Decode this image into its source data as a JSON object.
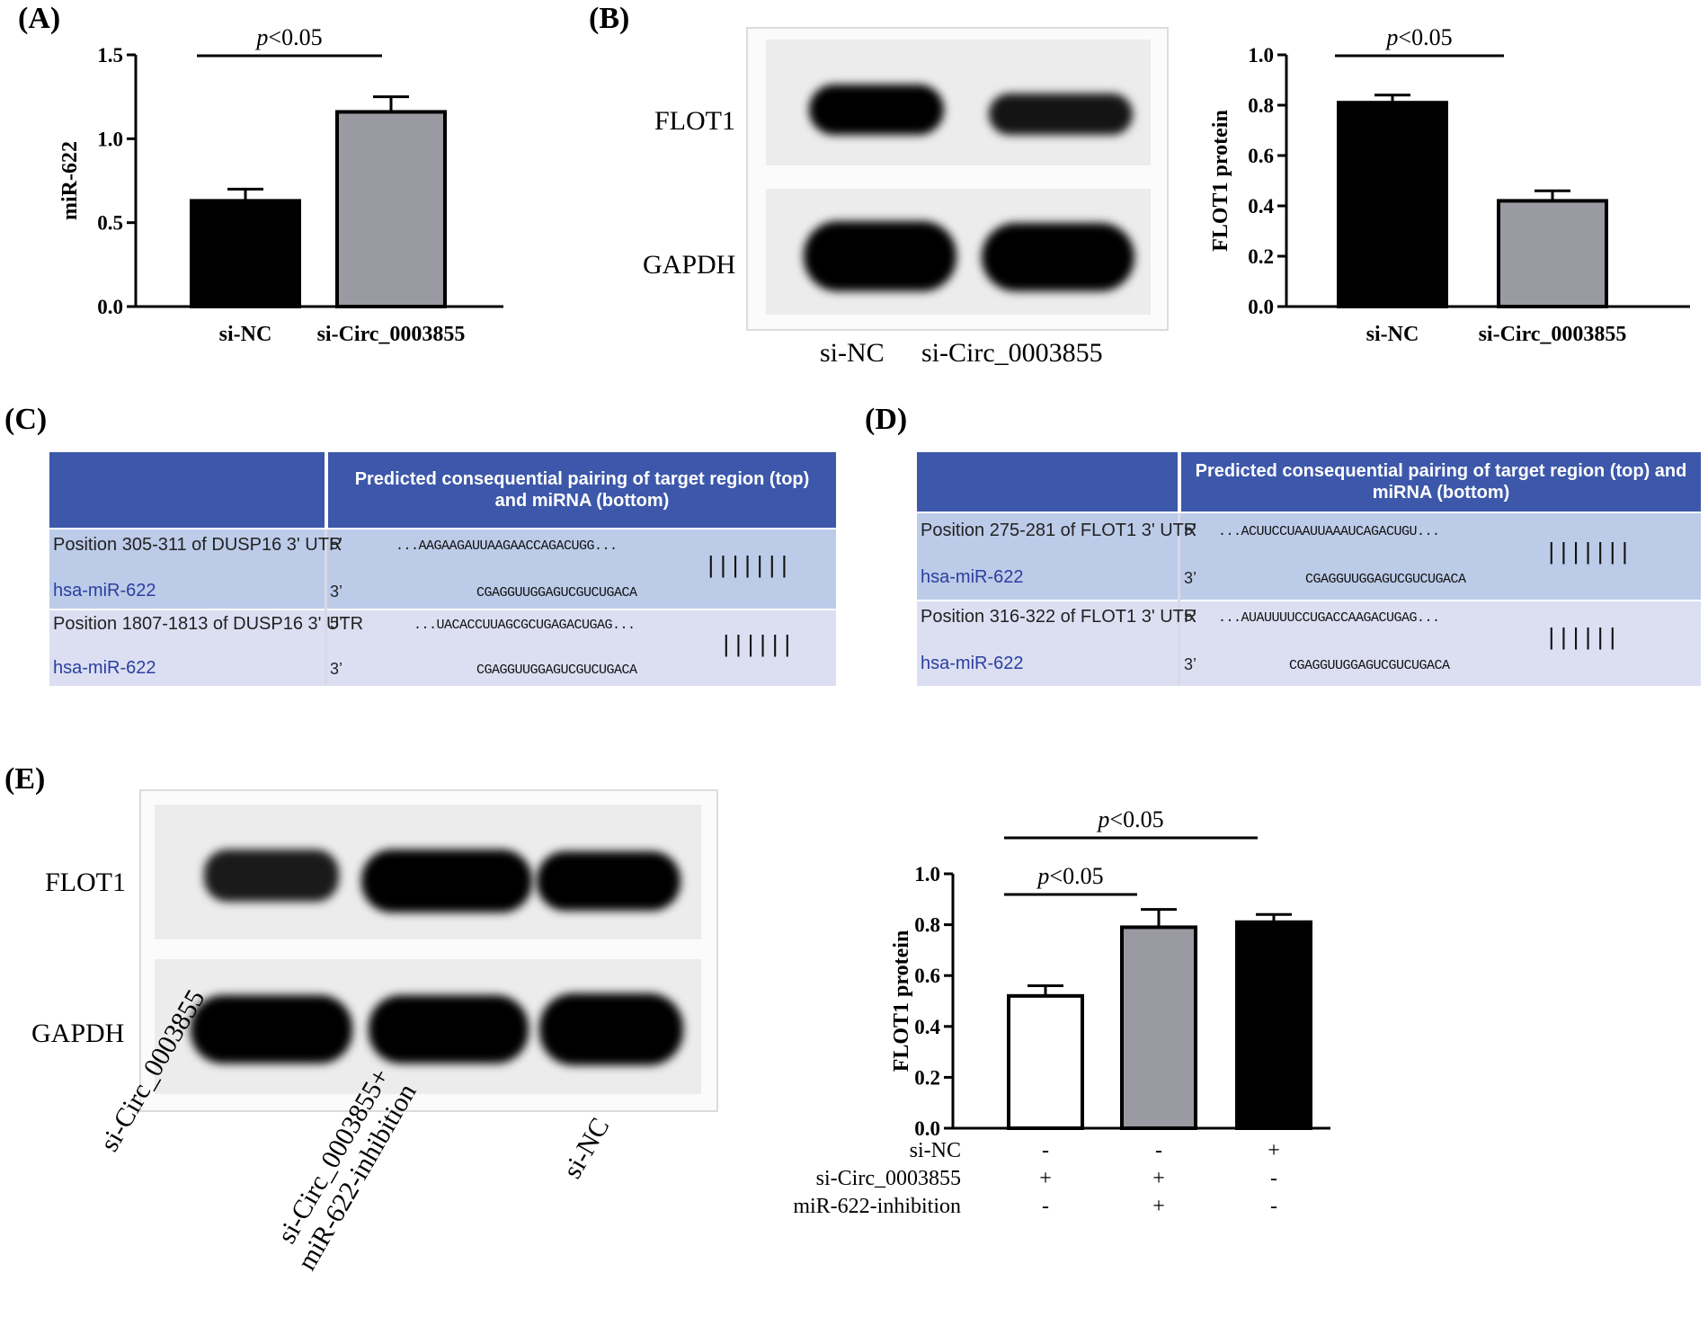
{
  "panels": {
    "a": "(A)",
    "b": "(B)",
    "c": "(C)",
    "d": "(D)",
    "e": "(E)"
  },
  "panel_b_blot": {
    "rows": [
      "FLOT1",
      "GAPDH"
    ],
    "lanes": [
      "si-NC",
      "si-Circ_0003855"
    ]
  },
  "panel_e_blot": {
    "rows": [
      "FLOT1",
      "GAPDH"
    ],
    "lanes": [
      "si-Circ_0003855",
      "si-Circ_0003855+",
      "miR-622-inhibition",
      "si-NC"
    ]
  },
  "panel_c_table": {
    "header": "Predicted consequential pairing of target region (top) and miRNA (bottom)",
    "rows": [
      {
        "position": "Position 305-311 of DUSP16 3' UTR",
        "mirna": "hsa-miR-622",
        "five": "5’",
        "three": "3’",
        "target_seq": "...AAGAAGAUUAAGAACCAGACUGG...",
        "mirna_seq": "CGAGGUUGGAGUCGUCUGACA",
        "pairing": "|||||||"
      },
      {
        "position": "Position 1807-1813 of DUSP16 3' UTR",
        "mirna": "hsa-miR-622",
        "five": "5’",
        "three": "3’",
        "target_seq": "...UACACCUUAGCGCUGAGACUGAG...",
        "mirna_seq": "CGAGGUUGGAGUCGUCUGACA",
        "pairing": "||||||"
      }
    ]
  },
  "panel_d_table": {
    "header": "Predicted consequential pairing of target region (top) and miRNA (bottom)",
    "rows": [
      {
        "position": "Position 275-281 of FLOT1 3' UTR",
        "mirna": "hsa-miR-622",
        "five": "5’",
        "three": "3’",
        "target_seq": "...ACUUCCUAAUUAAAUCAGACUGU...",
        "mirna_seq": "CGAGGUUGGAGUCGUCUGACA",
        "pairing": "|||||||"
      },
      {
        "position": "Position 316-322 of FLOT1 3' UTR",
        "mirna": "hsa-miR-622",
        "five": "5’",
        "three": "3’",
        "target_seq": "...AUAUUUUCCUGACCAAGACUGAG...",
        "mirna_seq": "CGAGGUUGGAGUCGUCUGACA",
        "pairing": "||||||"
      }
    ]
  },
  "chart_data": [
    {
      "id": "A",
      "type": "bar",
      "categories": [
        "si-NC",
        "si-Circ_0003855"
      ],
      "values": [
        0.63,
        1.16
      ],
      "errors": [
        0.07,
        0.09
      ],
      "colors": [
        "#000000",
        "#9a9aa2"
      ],
      "ylabel": "miR-622",
      "ylim": [
        0,
        1.5
      ],
      "yticks": [
        "0.0",
        "0.5",
        "1.0",
        "1.5"
      ],
      "ytick_values": [
        0,
        0.5,
        1.0,
        1.5
      ],
      "significance": [
        {
          "from": 0,
          "to": 1,
          "p_label": "p",
          "p_rest": "<0.05"
        }
      ]
    },
    {
      "id": "B",
      "type": "bar",
      "categories": [
        "si-NC",
        "si-Circ_0003855"
      ],
      "values": [
        0.81,
        0.42
      ],
      "errors": [
        0.03,
        0.04
      ],
      "colors": [
        "#000000",
        "#9a9aa2"
      ],
      "ylabel": "FLOT1 protein",
      "ylim": [
        0,
        1.0
      ],
      "yticks": [
        "0.0",
        "0.2",
        "0.4",
        "0.6",
        "0.8",
        "1.0"
      ],
      "ytick_values": [
        0,
        0.2,
        0.4,
        0.6,
        0.8,
        1.0
      ],
      "significance": [
        {
          "from": 0,
          "to": 1,
          "p_label": "p",
          "p_rest": "<0.05"
        }
      ]
    },
    {
      "id": "E",
      "type": "bar",
      "categories": [
        "si-Circ_0003855",
        "si-Circ_0003855+miR-622-inhibition",
        "si-NC"
      ],
      "values": [
        0.52,
        0.79,
        0.81
      ],
      "errors": [
        0.04,
        0.07,
        0.03
      ],
      "colors": [
        "#ffffff",
        "#9a9aa2",
        "#000000"
      ],
      "ylabel": "FLOT1 protein",
      "ylim": [
        0,
        1.0
      ],
      "yticks": [
        "0.0",
        "0.2",
        "0.4",
        "0.6",
        "0.8",
        "1.0"
      ],
      "ytick_values": [
        0,
        0.2,
        0.4,
        0.6,
        0.8,
        1.0
      ],
      "significance": [
        {
          "from": 0,
          "to": 2,
          "p_label": "p",
          "p_rest": "<0.05"
        },
        {
          "from": 0,
          "to": 1,
          "p_label": "p",
          "p_rest": "<0.05"
        }
      ],
      "condition_table": {
        "labels": [
          "si-NC",
          "si-Circ_0003855",
          "miR-622-inhibition"
        ],
        "signs": [
          [
            "-",
            "-",
            "+"
          ],
          [
            "+",
            "+",
            "-"
          ],
          [
            "-",
            "+",
            "-"
          ]
        ]
      }
    }
  ]
}
